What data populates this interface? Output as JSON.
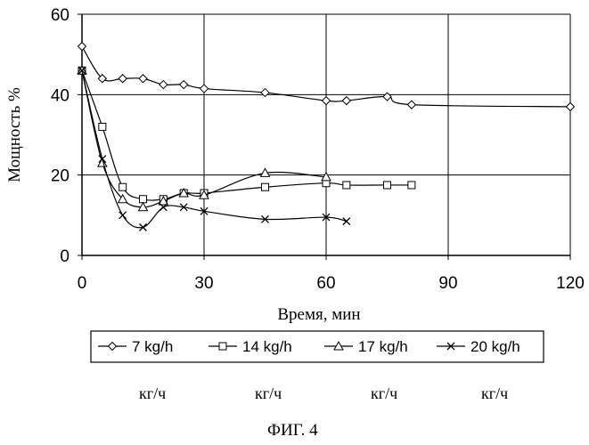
{
  "chart_data": {
    "type": "line",
    "xlabel": "Время, мин",
    "ylabel": "Мощность %",
    "xlim": [
      0,
      120
    ],
    "ylim": [
      0,
      60
    ],
    "xticks": [
      0,
      30,
      60,
      90,
      120
    ],
    "yticks": [
      0,
      20,
      40,
      60
    ],
    "grid": "vertical and horizontal gridlines",
    "legend_position": "bottom",
    "series": [
      {
        "name": "7 kg/h",
        "marker": "diamond",
        "x": [
          0,
          5,
          10,
          15,
          20,
          25,
          30,
          45,
          60,
          65,
          75,
          81,
          120
        ],
        "y": [
          52,
          44,
          44,
          44,
          42.5,
          42.5,
          41.5,
          40.5,
          38.5,
          38.5,
          39.5,
          37.5,
          37
        ]
      },
      {
        "name": "14 kg/h",
        "marker": "square",
        "x": [
          0,
          5,
          10,
          15,
          20,
          25,
          30,
          45,
          60,
          65,
          75,
          81
        ],
        "y": [
          46,
          32,
          17,
          14,
          14,
          15.5,
          15.5,
          17,
          18,
          17.5,
          17.5,
          17.5
        ]
      },
      {
        "name": "17 kg/h",
        "marker": "triangle",
        "x": [
          0,
          5,
          10,
          15,
          20,
          25,
          30,
          45,
          60
        ],
        "y": [
          46,
          23,
          14,
          12,
          13.5,
          15.5,
          15,
          20.5,
          19.5
        ]
      },
      {
        "name": "20 kg/h",
        "marker": "x",
        "x": [
          0,
          5,
          10,
          15,
          20,
          25,
          30,
          45,
          60,
          65
        ],
        "y": [
          46,
          24,
          10,
          7,
          12,
          12,
          11,
          9,
          9.5,
          8.5
        ]
      }
    ]
  },
  "units_row": [
    "кг/ч",
    "кг/ч",
    "кг/ч",
    "кг/ч"
  ],
  "caption": "ФИГ. 4"
}
